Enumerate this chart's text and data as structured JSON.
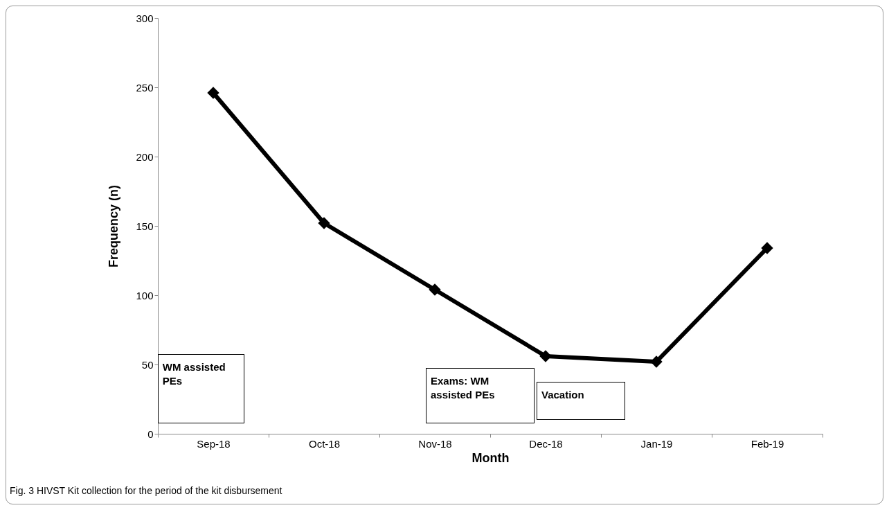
{
  "chart_data": {
    "type": "line",
    "xlabel": "Month",
    "ylabel": "Frequency (n)",
    "categories": [
      "Sep-18",
      "Oct-18",
      "Nov-18",
      "Dec-18",
      "Jan-19",
      "Feb-19"
    ],
    "series": [
      {
        "color": "#000000",
        "values": [
          246,
          152,
          104,
          56,
          52,
          134
        ]
      }
    ],
    "ylim": [
      0,
      300
    ],
    "yticks": [
      0,
      50,
      100,
      150,
      200,
      250,
      300
    ],
    "grid": false,
    "legend": false,
    "marker": "diamond",
    "line_style": "solid",
    "annotations": [
      "WM assisted PEs",
      "Exams: WM assisted PEs",
      "Vacation",
      "Fig. 3 HIVST Kit collection for the period of the kit disbursement"
    ]
  }
}
